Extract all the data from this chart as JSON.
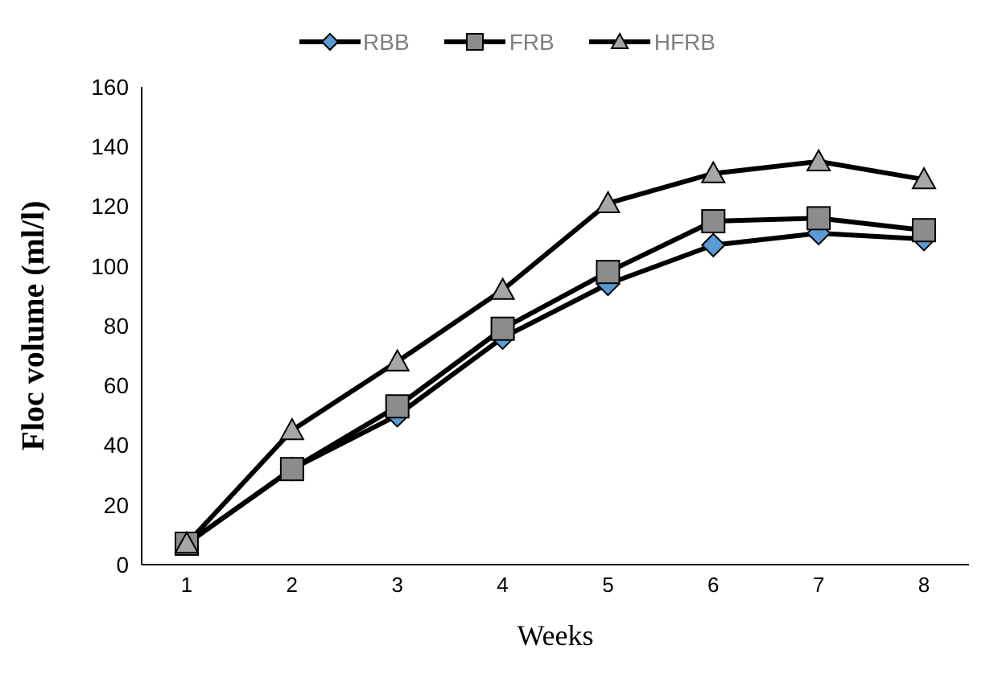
{
  "chart_data": {
    "type": "line",
    "xlabel": "Weeks",
    "ylabel": "Floc volume (ml/l)",
    "categories": [
      "1",
      "2",
      "3",
      "4",
      "5",
      "6",
      "7",
      "8"
    ],
    "series": [
      {
        "name": "RBB",
        "color": "#5b9bd5",
        "marker": "diamond",
        "values": [
          7,
          32,
          50,
          76,
          94,
          107,
          111,
          109
        ]
      },
      {
        "name": "FRB",
        "color": "#8c8c8c",
        "marker": "square",
        "values": [
          7,
          32,
          53,
          79,
          98,
          115,
          116,
          112
        ]
      },
      {
        "name": "HFRB",
        "color": "#a6a6a6",
        "marker": "triangle",
        "values": [
          7,
          45,
          68,
          92,
          121,
          131,
          135,
          129
        ]
      }
    ],
    "ylim": [
      0,
      160
    ],
    "yticks": [
      0,
      20,
      40,
      60,
      80,
      100,
      120,
      140,
      160
    ],
    "grid": false,
    "legend": "top"
  }
}
